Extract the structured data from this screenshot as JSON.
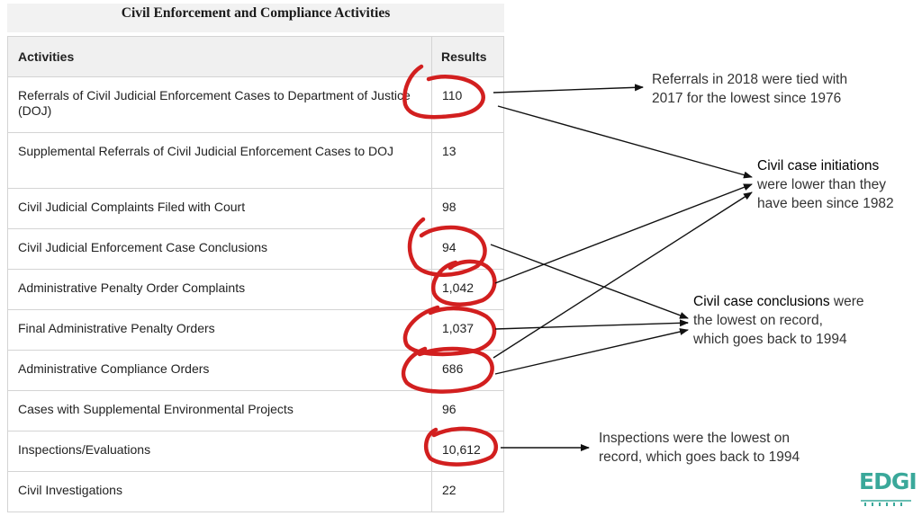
{
  "title": "Civil Enforcement and Compliance Activities",
  "table": {
    "headers": {
      "activity": "Activities",
      "result": "Results"
    },
    "rows": [
      {
        "activity": "Referrals of Civil Judicial Enforcement Cases to Department of Justice (DOJ)",
        "result": "110",
        "circled": true
      },
      {
        "activity": "Supplemental Referrals of Civil Judicial Enforcement Cases to DOJ",
        "result": "13",
        "circled": false
      },
      {
        "activity": "Civil Judicial Complaints Filed with Court",
        "result": "98",
        "circled": false
      },
      {
        "activity": "Civil Judicial Enforcement Case Conclusions",
        "result": "94",
        "circled": true
      },
      {
        "activity": "Administrative Penalty Order Complaints",
        "result": "1,042",
        "circled": true
      },
      {
        "activity": "Final Administrative Penalty Orders",
        "result": "1,037",
        "circled": true
      },
      {
        "activity": "Administrative Compliance Orders",
        "result": "686",
        "circled": true
      },
      {
        "activity": "Cases with Supplemental Environmental Projects",
        "result": "96",
        "circled": false
      },
      {
        "activity": "Inspections/Evaluations",
        "result": "10,612",
        "circled": true
      },
      {
        "activity": "Civil Investigations",
        "result": "22",
        "circled": false
      }
    ]
  },
  "annotations": {
    "referrals": {
      "line1": "Referrals in 2018 were tied with",
      "line2": "2017 for the lowest since 1976"
    },
    "initiations": {
      "strong": "Civil case initiations",
      "line2": "were lower than they",
      "line3": "have been since 1982"
    },
    "conclusions": {
      "strong": "Civil case conclusions",
      "rest": " were",
      "line2": "the lowest on record,",
      "line3": "which goes back to 1994"
    },
    "inspections": {
      "line1": "Inspections were the lowest on",
      "line2": "record, which goes back to 1994"
    }
  },
  "logo": {
    "text": "EDGI"
  },
  "colors": {
    "circle": "#d21f1f",
    "arrow": "#111111",
    "logo": "#3aa89a",
    "header_bg": "#f0f0f0"
  }
}
